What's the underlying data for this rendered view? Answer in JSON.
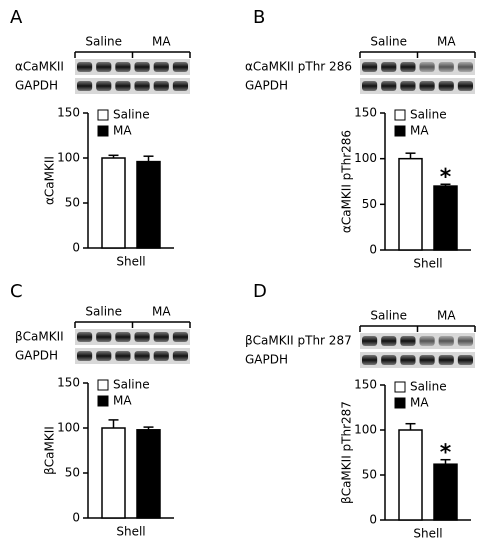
{
  "chart_data": [
    {
      "type": "bar",
      "panel": "A",
      "blot": {
        "groups": [
          "Saline",
          "MA"
        ],
        "rows": [
          "αCaMKII",
          "GAPDH"
        ]
      },
      "ylabel": "αCaMKII",
      "categories": [
        "Shell"
      ],
      "ylim": [
        0,
        150
      ],
      "yticks": [
        0,
        50,
        100,
        150
      ],
      "series": [
        {
          "name": "Saline",
          "color": "#ffffff",
          "values": [
            100
          ],
          "errors": [
            3
          ]
        },
        {
          "name": "MA",
          "color": "#000000",
          "values": [
            96
          ],
          "errors": [
            6
          ]
        }
      ]
    },
    {
      "type": "bar",
      "panel": "B",
      "blot": {
        "groups": [
          "Saline",
          "MA"
        ],
        "rows": [
          "αCaMKII pThr 286",
          "GAPDH"
        ]
      },
      "ylabel": "αCaMKII pThr286",
      "categories": [
        "Shell"
      ],
      "ylim": [
        0,
        150
      ],
      "yticks": [
        0,
        50,
        100,
        150
      ],
      "series": [
        {
          "name": "Saline",
          "color": "#ffffff",
          "values": [
            100
          ],
          "errors": [
            6
          ]
        },
        {
          "name": "MA",
          "color": "#000000",
          "values": [
            70
          ],
          "errors": [
            2
          ]
        }
      ],
      "annotations": [
        "*"
      ]
    },
    {
      "type": "bar",
      "panel": "C",
      "blot": {
        "groups": [
          "Saline",
          "MA"
        ],
        "rows": [
          "βCaMKII",
          "GAPDH"
        ]
      },
      "ylabel": "βCaMKII",
      "categories": [
        "Shell"
      ],
      "ylim": [
        0,
        150
      ],
      "yticks": [
        0,
        50,
        100,
        150
      ],
      "series": [
        {
          "name": "Saline",
          "color": "#ffffff",
          "values": [
            100
          ],
          "errors": [
            9
          ]
        },
        {
          "name": "MA",
          "color": "#000000",
          "values": [
            98
          ],
          "errors": [
            3
          ]
        }
      ]
    },
    {
      "type": "bar",
      "panel": "D",
      "blot": {
        "groups": [
          "Saline",
          "MA"
        ],
        "rows": [
          "βCaMKII pThr 287",
          "GAPDH"
        ]
      },
      "ylabel": "βCaMKII pThr287",
      "categories": [
        "Shell"
      ],
      "ylim": [
        0,
        150
      ],
      "yticks": [
        0,
        50,
        100,
        150
      ],
      "series": [
        {
          "name": "Saline",
          "color": "#ffffff",
          "values": [
            100
          ],
          "errors": [
            7
          ]
        },
        {
          "name": "MA",
          "color": "#000000",
          "values": [
            62
          ],
          "errors": [
            5
          ]
        }
      ],
      "annotations": [
        "*"
      ]
    }
  ]
}
